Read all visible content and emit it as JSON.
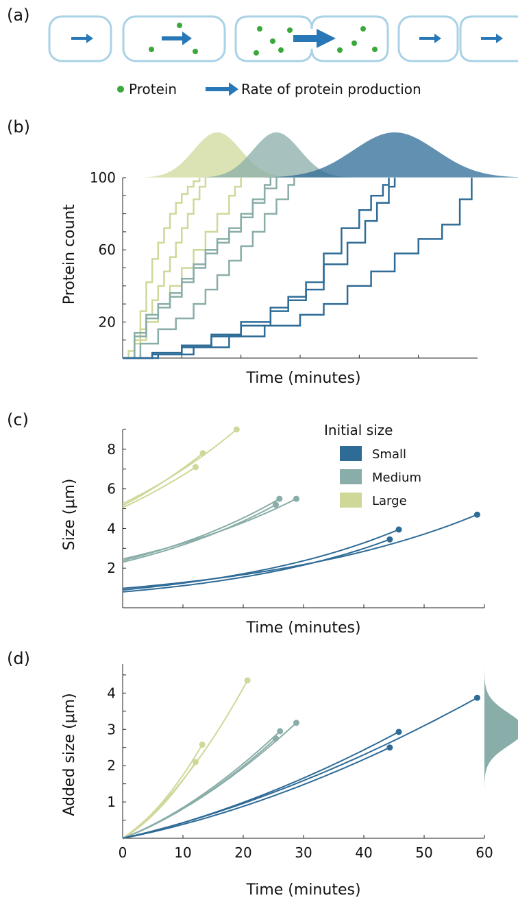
{
  "panel_labels": [
    "(a)",
    "(b)",
    "(c)",
    "(d)"
  ],
  "colors": {
    "small": "#2e6b97",
    "medium": "#89ada8",
    "large": "#cfd899",
    "protein": "#3aa83a",
    "arrow": "#2878b8",
    "cell": "#a9d2e6"
  },
  "panel_a": {
    "legend": {
      "protein": "Protein",
      "rate": "Rate of protein production"
    }
  },
  "chart_data": [
    {
      "id": "b",
      "type": "line",
      "style": "step",
      "xlabel": "Time (minutes)",
      "ylabel": "Protein count",
      "xlim": [
        0,
        60
      ],
      "ylim": [
        0,
        100
      ],
      "yticks": [
        20,
        60,
        100
      ],
      "series": [
        {
          "group": "large",
          "x": [
            0,
            1,
            2,
            3,
            4,
            5,
            6,
            7,
            8,
            9,
            10,
            11,
            12,
            13
          ],
          "y": [
            0,
            4,
            12,
            26,
            42,
            55,
            64,
            72,
            80,
            86,
            91,
            95,
            98,
            100
          ]
        },
        {
          "group": "large",
          "x": [
            0,
            2,
            3,
            4,
            5,
            6,
            7,
            8,
            9,
            10,
            11,
            12,
            13,
            14
          ],
          "y": [
            0,
            8,
            16,
            24,
            32,
            40,
            48,
            56,
            64,
            72,
            80,
            88,
            95,
            100
          ]
        },
        {
          "group": "large",
          "x": [
            0,
            2,
            4,
            6,
            8,
            10,
            12,
            14,
            16,
            18,
            19,
            20
          ],
          "y": [
            0,
            10,
            20,
            30,
            40,
            50,
            60,
            70,
            80,
            90,
            95,
            100
          ]
        },
        {
          "group": "medium",
          "x": [
            0,
            2,
            4,
            6,
            8,
            10,
            12,
            14,
            16,
            18,
            20,
            22,
            24,
            26
          ],
          "y": [
            0,
            12,
            22,
            28,
            34,
            42,
            50,
            58,
            64,
            70,
            78,
            86,
            94,
            100
          ]
        },
        {
          "group": "medium",
          "x": [
            0,
            2,
            4,
            6,
            8,
            10,
            12,
            14,
            16,
            18,
            20,
            22,
            24,
            25
          ],
          "y": [
            0,
            14,
            24,
            30,
            36,
            44,
            52,
            60,
            66,
            72,
            80,
            88,
            96,
            100
          ]
        },
        {
          "group": "medium",
          "x": [
            0,
            3,
            6,
            9,
            12,
            14,
            16,
            18,
            20,
            22,
            24,
            26,
            28,
            29
          ],
          "y": [
            0,
            8,
            16,
            22,
            30,
            38,
            46,
            54,
            62,
            70,
            80,
            88,
            96,
            100
          ]
        },
        {
          "group": "small",
          "x": [
            0,
            5,
            10,
            15,
            20,
            25,
            28,
            31,
            34,
            37,
            40,
            42,
            44,
            45
          ],
          "y": [
            0,
            2,
            6,
            12,
            18,
            26,
            32,
            42,
            58,
            72,
            82,
            90,
            96,
            100
          ]
        },
        {
          "group": "small",
          "x": [
            0,
            5,
            10,
            15,
            20,
            25,
            28,
            31,
            34,
            38,
            41,
            43,
            45,
            46
          ],
          "y": [
            0,
            3,
            7,
            13,
            20,
            28,
            34,
            38,
            52,
            64,
            76,
            86,
            95,
            100
          ]
        },
        {
          "group": "small",
          "x": [
            0,
            6,
            12,
            18,
            24,
            30,
            34,
            38,
            42,
            46,
            50,
            54,
            57,
            59
          ],
          "y": [
            0,
            2,
            6,
            12,
            18,
            24,
            30,
            40,
            48,
            58,
            66,
            74,
            88,
            100
          ]
        }
      ],
      "top_distributions": [
        {
          "group": "large",
          "center": 16,
          "width": 4
        },
        {
          "group": "medium",
          "center": 26,
          "width": 4
        },
        {
          "group": "small",
          "center": 46,
          "width": 7
        }
      ]
    },
    {
      "id": "c",
      "type": "line",
      "xlabel": "Time (minutes)",
      "ylabel": "Size  (μm)",
      "xlim": [
        0,
        60
      ],
      "ylim": [
        0,
        9
      ],
      "yticks": [
        2,
        4,
        6,
        8
      ],
      "legend": {
        "title": "Initial size",
        "entries": [
          {
            "group": "small",
            "label": "Small"
          },
          {
            "group": "medium",
            "label": "Medium"
          },
          {
            "group": "large",
            "label": "Large"
          }
        ],
        "placement": "top-right"
      },
      "series": [
        {
          "group": "large",
          "start": 5.05,
          "end_x": 12.1,
          "end_y": 7.1
        },
        {
          "group": "large",
          "start": 5.15,
          "end_x": 13.3,
          "end_y": 7.8
        },
        {
          "group": "large",
          "start": 5.25,
          "end_x": 18.9,
          "end_y": 9.0
        },
        {
          "group": "medium",
          "start": 2.3,
          "end_x": 25.4,
          "end_y": 5.2
        },
        {
          "group": "medium",
          "start": 2.38,
          "end_x": 26.0,
          "end_y": 5.5
        },
        {
          "group": "medium",
          "start": 2.46,
          "end_x": 28.8,
          "end_y": 5.5
        },
        {
          "group": "small",
          "start": 0.8,
          "end_x": 44.3,
          "end_y": 3.45
        },
        {
          "group": "small",
          "start": 0.9,
          "end_x": 45.8,
          "end_y": 3.95
        },
        {
          "group": "small",
          "start": 0.98,
          "end_x": 58.8,
          "end_y": 4.7
        }
      ]
    },
    {
      "id": "d",
      "type": "line",
      "xlabel": "Time (minutes)",
      "ylabel": "Added size (μm)",
      "xlim": [
        0,
        60
      ],
      "ylim": [
        0,
        4.8
      ],
      "xticks": [
        0,
        10,
        20,
        30,
        40,
        50,
        60
      ],
      "yticks": [
        1,
        2,
        3,
        4
      ],
      "series": [
        {
          "group": "large",
          "end_x": 12.1,
          "end_y": 2.1
        },
        {
          "group": "large",
          "end_x": 13.2,
          "end_y": 2.58
        },
        {
          "group": "large",
          "end_x": 20.7,
          "end_y": 4.35
        },
        {
          "group": "medium",
          "end_x": 25.4,
          "end_y": 2.75
        },
        {
          "group": "medium",
          "end_x": 26.1,
          "end_y": 2.95
        },
        {
          "group": "medium",
          "end_x": 28.8,
          "end_y": 3.18
        },
        {
          "group": "small",
          "end_x": 44.3,
          "end_y": 2.5
        },
        {
          "group": "small",
          "end_x": 45.8,
          "end_y": 2.93
        },
        {
          "group": "small",
          "end_x": 58.8,
          "end_y": 3.87
        }
      ],
      "side_distribution": {
        "group": "medium",
        "center": 3.0,
        "width": 0.45
      }
    }
  ]
}
